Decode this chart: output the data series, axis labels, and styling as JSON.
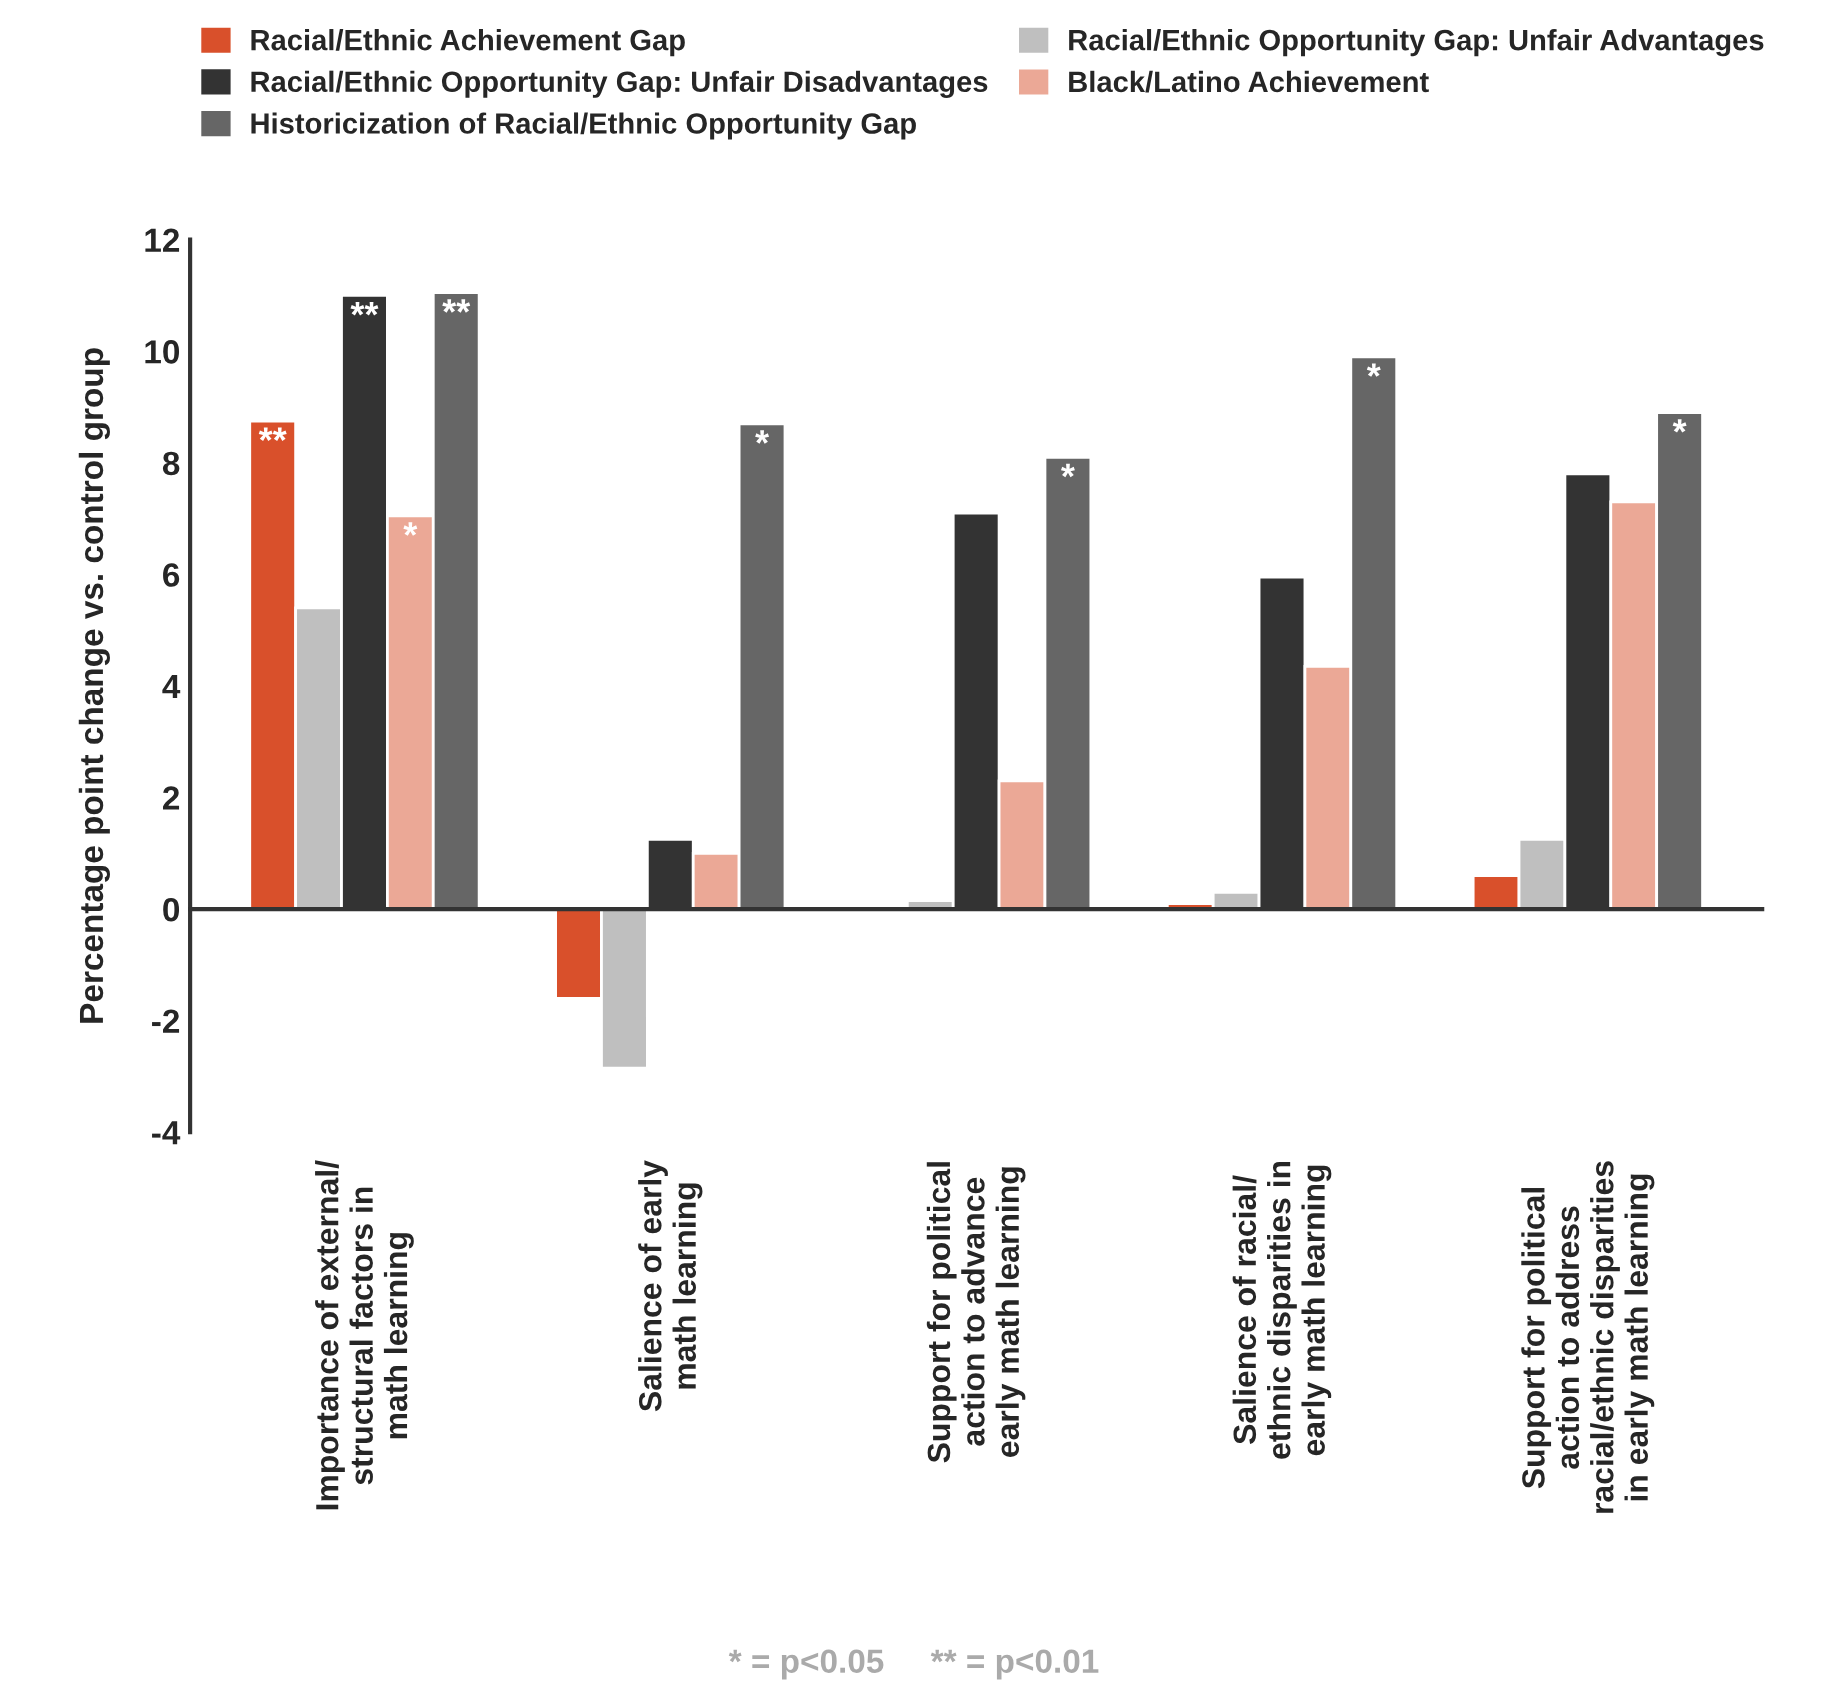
{
  "chart_data": {
    "type": "bar",
    "ylabel": "Percentage point change vs. control group",
    "categories": [
      "Importance of external/\nstructural factors in\nmath learning",
      "Salience of early\nmath learning",
      "Support for political\naction to advance\nearly math learning",
      "Salience of racial/\nethnic disparities in\nearly math learning",
      "Support for political\naction to address\nracial/ethnic disparities\nin early math learning"
    ],
    "series": [
      {
        "name": "Racial/Ethnic Achievement Gap",
        "color": "#d9502b",
        "values": [
          8.75,
          -1.6,
          null,
          0.1,
          0.6
        ],
        "value_labels": [
          "**",
          null,
          null,
          null,
          null
        ]
      },
      {
        "name": "Racial/Ethnic Opportunity Gap: Unfair Advantages",
        "color": "#bfbfbf",
        "values": [
          5.4,
          -2.85,
          0.15,
          0.3,
          1.25
        ]
      },
      {
        "name": "Racial/Ethnic Opportunity Gap: Unfair Disadvantages",
        "color": "#333333",
        "values": [
          11.0,
          1.25,
          7.1,
          5.95,
          7.8
        ],
        "value_labels": [
          "**",
          null,
          null,
          null,
          null
        ]
      },
      {
        "name": "Black/Latino Achievement",
        "color": "#eba896",
        "values": [
          7.05,
          1.0,
          2.3,
          4.35,
          7.3
        ],
        "value_labels": [
          "*",
          null,
          null,
          null,
          null
        ]
      },
      {
        "name": "Historicization of Racial/Ethnic Opportunity Gap",
        "color": "#666666",
        "values": [
          11.05,
          8.7,
          8.1,
          9.9,
          8.9
        ],
        "value_labels": [
          "**",
          "*",
          "*",
          "*",
          "*"
        ]
      }
    ],
    "ylim": [
      -4,
      12
    ],
    "yticks": [
      -4,
      -2,
      0,
      2,
      4,
      6,
      8,
      10,
      12
    ],
    "legend": "top",
    "annotations": [
      "* = p<0.05     ** = p<0.01"
    ]
  }
}
